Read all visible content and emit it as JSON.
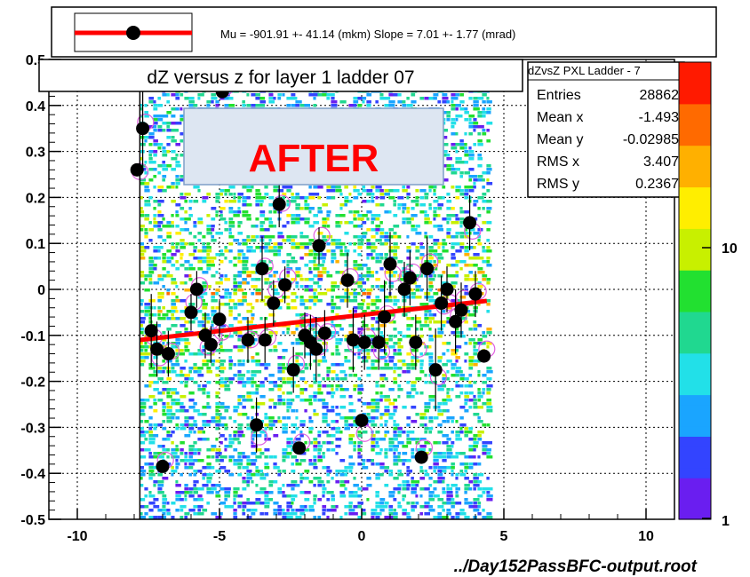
{
  "title": "dZ versus  z for layer 1 ladder 07",
  "overlay_label": "AFTER",
  "fit_legend": "Mu = -901.91 +- 41.14 (mkm)  Slope =    7.01 +-   1.77 (mrad)",
  "file_label": "../Day152PassBFC-output.root",
  "stats": {
    "name": "dZvsZ PXL Ladder - 7",
    "rows": [
      {
        "label": "Entries",
        "value": "28862"
      },
      {
        "label": "Mean x",
        "value": "-1.493"
      },
      {
        "label": "Mean y",
        "value": "-0.02985"
      },
      {
        "label": "RMS x",
        "value": "3.407"
      },
      {
        "label": "RMS y",
        "value": "0.2367"
      }
    ]
  },
  "colors": {
    "fit_line": "#ff0000",
    "marker": "#000000",
    "overlay_bg": "#dde6f2",
    "overlay_text": "#ff0000",
    "palette": [
      "#6a1ef0",
      "#3344ff",
      "#1aa5ff",
      "#22e0e8",
      "#20d890",
      "#22e030",
      "#c8f000",
      "#ffee00",
      "#ffb000",
      "#ff6a00",
      "#ff1a00"
    ]
  },
  "chart_data": {
    "type": "scatter",
    "xlim": [
      -11,
      11
    ],
    "ylim": [
      -0.5,
      0.5
    ],
    "x_ticks": [
      -10,
      -5,
      0,
      5,
      10
    ],
    "x_tick_labels": [
      "-10",
      "-5",
      "0",
      "5",
      "10"
    ],
    "y_ticks": [
      -0.5,
      -0.4,
      -0.3,
      -0.2,
      -0.1,
      0,
      0.1,
      0.2,
      0.3,
      0.4,
      0.5
    ],
    "y_tick_labels": [
      "-0.5",
      "-0.4",
      "-0.3",
      "-0.2",
      "-0.1",
      "0",
      "0.1",
      "0.2",
      "0.3",
      "0.4",
      "0.5"
    ],
    "grid": true,
    "colorbar": {
      "scale": "log",
      "tick_labels": [
        "1",
        "10"
      ]
    },
    "histogram_x_range": [
      -7.8,
      4.4
    ],
    "profile_points": [
      {
        "x": -7.9,
        "y": 0.26,
        "err": 0.0
      },
      {
        "x": -7.7,
        "y": 0.35,
        "err": 0.09
      },
      {
        "x": -7.4,
        "y": -0.09,
        "err": 0.08
      },
      {
        "x": -7.2,
        "y": -0.13,
        "err": 0.06
      },
      {
        "x": -7.0,
        "y": -0.385,
        "err": 0.0
      },
      {
        "x": -6.8,
        "y": -0.14,
        "err": 0.05
      },
      {
        "x": -6.0,
        "y": -0.05,
        "err": 0.04
      },
      {
        "x": -5.8,
        "y": 0.0,
        "err": 0.04
      },
      {
        "x": -5.5,
        "y": -0.1,
        "err": 0.05
      },
      {
        "x": -5.3,
        "y": -0.12,
        "err": 0.04
      },
      {
        "x": -5.0,
        "y": -0.065,
        "err": 0.04
      },
      {
        "x": -4.9,
        "y": 0.43,
        "err": 0.0
      },
      {
        "x": -4.0,
        "y": -0.11,
        "err": 0.05
      },
      {
        "x": -3.7,
        "y": -0.295,
        "err": 0.06
      },
      {
        "x": -3.5,
        "y": 0.045,
        "err": 0.07
      },
      {
        "x": -3.4,
        "y": -0.11,
        "err": 0.05
      },
      {
        "x": -3.1,
        "y": -0.03,
        "err": 0.05
      },
      {
        "x": -2.9,
        "y": 0.185,
        "err": 0.05
      },
      {
        "x": -2.7,
        "y": 0.01,
        "err": 0.04
      },
      {
        "x": -2.4,
        "y": -0.175,
        "err": 0.05
      },
      {
        "x": -2.2,
        "y": -0.345,
        "err": 0.0
      },
      {
        "x": -2.0,
        "y": -0.1,
        "err": 0.05
      },
      {
        "x": -1.8,
        "y": -0.115,
        "err": 0.06
      },
      {
        "x": -1.6,
        "y": -0.13,
        "err": 0.07
      },
      {
        "x": -1.5,
        "y": 0.095,
        "err": 0.04
      },
      {
        "x": -1.3,
        "y": -0.095,
        "err": 0.05
      },
      {
        "x": -0.5,
        "y": 0.02,
        "err": 0.06
      },
      {
        "x": -0.3,
        "y": -0.11,
        "err": 0.07
      },
      {
        "x": 0.0,
        "y": -0.285,
        "err": 0.0
      },
      {
        "x": 0.1,
        "y": -0.115,
        "err": 0.06
      },
      {
        "x": 0.6,
        "y": -0.115,
        "err": 0.06
      },
      {
        "x": 0.8,
        "y": -0.06,
        "err": 0.08
      },
      {
        "x": 1.0,
        "y": 0.055,
        "err": 0.07
      },
      {
        "x": 1.5,
        "y": 0.0,
        "err": 0.06
      },
      {
        "x": 1.7,
        "y": 0.025,
        "err": 0.06
      },
      {
        "x": 1.9,
        "y": -0.115,
        "err": 0.06
      },
      {
        "x": 2.1,
        "y": -0.365,
        "err": 0.0
      },
      {
        "x": 2.3,
        "y": 0.045,
        "err": 0.07
      },
      {
        "x": 2.6,
        "y": -0.175,
        "err": 0.09
      },
      {
        "x": 2.8,
        "y": -0.03,
        "err": 0.06
      },
      {
        "x": 3.0,
        "y": 0.0,
        "err": 0.05
      },
      {
        "x": 3.3,
        "y": -0.07,
        "err": 0.07
      },
      {
        "x": 3.5,
        "y": -0.045,
        "err": 0.06
      },
      {
        "x": 3.8,
        "y": 0.145,
        "err": 0.06
      },
      {
        "x": 4.0,
        "y": -0.01,
        "err": 0.05
      },
      {
        "x": 4.3,
        "y": -0.145,
        "err": 0.0
      }
    ],
    "fit_line": {
      "x": [
        -7.8,
        4.4
      ],
      "y": [
        -0.11,
        -0.025
      ]
    }
  }
}
